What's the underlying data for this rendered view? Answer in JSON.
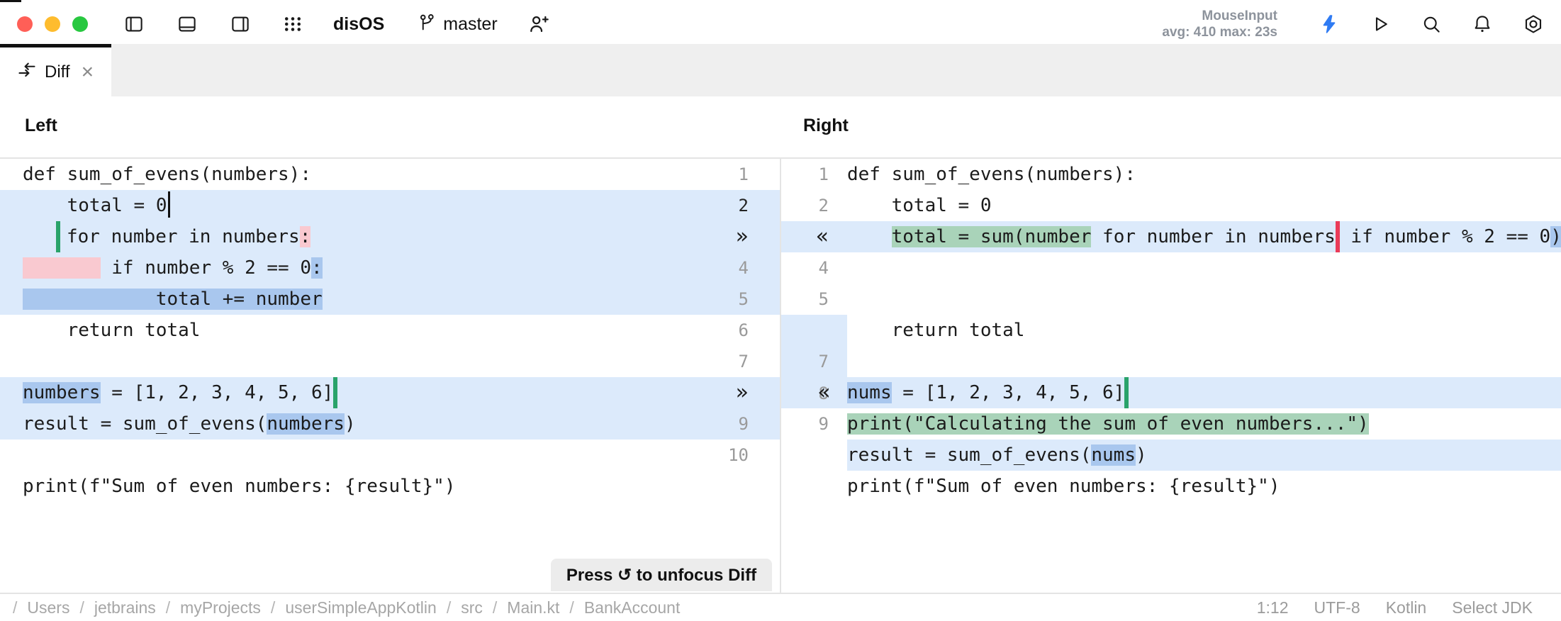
{
  "toolbar": {
    "project": "disOS",
    "branch": "master",
    "perf_line1": "MouseInput",
    "perf_line2": "avg: 410 max: 23s"
  },
  "tab": {
    "label": "Diff",
    "close": "×"
  },
  "diff": {
    "left_header": "Left",
    "right_header": "Right",
    "left_rows": [
      {
        "gutter": {
          "label": "1",
          "kind": "num"
        },
        "gutter_bg": "white",
        "code_bg": "white",
        "segs": [
          {
            "t": "def sum_of_evens(numbers):"
          }
        ]
      },
      {
        "gutter": {
          "label": "2",
          "kind": "num-active"
        },
        "gutter_bg": "blue",
        "code_bg": "blue",
        "segs": [
          {
            "t": "    total = 0"
          },
          {
            "caret": true
          }
        ]
      },
      {
        "gutter": {
          "label": "»",
          "kind": "chev"
        },
        "gutter_bg": "blue",
        "code_bg": "blue",
        "segs": [
          {
            "t": "   "
          },
          {
            "bar": "green"
          },
          {
            "t": "for number in numbers"
          },
          {
            "t": ":",
            "h": "del"
          }
        ]
      },
      {
        "gutter": {
          "label": "4",
          "kind": "num"
        },
        "gutter_bg": "blue",
        "code_bg": "blue",
        "segs": [
          {
            "t": "       ",
            "h": "del"
          },
          {
            "t": " "
          },
          {
            "t": "if number % 2 == 0"
          },
          {
            "t": ":",
            "h": "word"
          }
        ]
      },
      {
        "gutter": {
          "label": "5",
          "kind": "num"
        },
        "gutter_bg": "blue",
        "code_bg": "blue",
        "segs": [
          {
            "t": "            total += number",
            "h": "word"
          }
        ]
      },
      {
        "gutter": {
          "label": "6",
          "kind": "num"
        },
        "gutter_bg": "white",
        "code_bg": "white",
        "segs": [
          {
            "t": "    return total"
          }
        ]
      },
      {
        "gutter": {
          "label": "7",
          "kind": "num"
        },
        "gutter_bg": "white",
        "code_bg": "white",
        "segs": []
      },
      {
        "gutter": {
          "label": "»",
          "kind": "chev"
        },
        "gutter_bg": "blue",
        "code_bg": "blue",
        "segs": [
          {
            "t": "numbers",
            "h": "word"
          },
          {
            "t": " = [1, 2, 3, 4, 5, 6]"
          },
          {
            "bar": "green"
          }
        ]
      },
      {
        "gutter": {
          "label": "9",
          "kind": "num"
        },
        "gutter_bg": "blue",
        "code_bg": "blue",
        "segs": [
          {
            "t": "result = sum_of_evens("
          },
          {
            "t": "numbers",
            "h": "word"
          },
          {
            "t": ")"
          }
        ]
      },
      {
        "gutter": {
          "label": "10",
          "kind": "num"
        },
        "gutter_bg": "white",
        "code_bg": "white",
        "segs": []
      },
      {
        "gutter": {
          "label": "",
          "kind": "empty"
        },
        "gutter_bg": "white",
        "code_bg": "white",
        "segs": [
          {
            "t": "print(f\"Sum of even numbers: {result}\")"
          }
        ]
      }
    ],
    "right_rows": [
      {
        "gutter": {
          "label": "1",
          "kind": "num"
        },
        "gutter_bg": "white",
        "code_bg": "white",
        "segs": [
          {
            "t": "def sum_of_evens(numbers):"
          }
        ]
      },
      {
        "gutter": {
          "label": "2",
          "kind": "num"
        },
        "gutter_bg": "white",
        "code_bg": "white",
        "segs": [
          {
            "t": "    total = 0"
          }
        ]
      },
      {
        "gutter": {
          "label": "«",
          "kind": "chev"
        },
        "gutter_bg": "blue",
        "code_bg": "blue",
        "segs": [
          {
            "t": "    "
          },
          {
            "t": "total = sum(number",
            "h": "add"
          },
          {
            "t": " for number in numbers"
          },
          {
            "bar": "red"
          },
          {
            "t": " if number % 2 == 0"
          },
          {
            "t": ")",
            "h": "word"
          }
        ]
      },
      {
        "gutter": {
          "label": "4",
          "kind": "num"
        },
        "gutter_bg": "white",
        "code_bg": "white",
        "segs": []
      },
      {
        "gutter": {
          "label": "5",
          "kind": "num"
        },
        "gutter_bg": "white",
        "code_bg": "white",
        "segs": []
      },
      {
        "gutter": {
          "label": "",
          "kind": "empty"
        },
        "gutter_bg": "blue",
        "code_bg": "white",
        "segs": [
          {
            "t": "    return total"
          }
        ]
      },
      {
        "gutter": {
          "label": "7",
          "kind": "num"
        },
        "gutter_bg": "blue",
        "code_bg": "white",
        "segs": []
      },
      {
        "gutter": {
          "label": "«",
          "kind": "chev",
          "extra": "8"
        },
        "gutter_bg": "blue",
        "code_bg": "blue",
        "segs": [
          {
            "t": "nums",
            "h": "word"
          },
          {
            "t": " = [1, 2, 3, 4, 5, 6]"
          },
          {
            "bar": "green"
          }
        ]
      },
      {
        "gutter": {
          "label": "9",
          "kind": "num"
        },
        "gutter_bg": "white",
        "code_bg": "white",
        "segs": [
          {
            "t": "print(\"Calculating the sum of even numbers...\")",
            "h": "add"
          }
        ]
      },
      {
        "gutter": {
          "label": "",
          "kind": "empty"
        },
        "gutter_bg": "white",
        "code_bg": "blue",
        "segs": [
          {
            "t": "result = sum_of_evens("
          },
          {
            "t": "nums",
            "h": "word"
          },
          {
            "t": ")"
          }
        ]
      },
      {
        "gutter": {
          "label": "",
          "kind": "empty"
        },
        "gutter_bg": "white",
        "code_bg": "white",
        "segs": [
          {
            "t": "print(f\"Sum of even numbers: {result}\")"
          }
        ]
      }
    ]
  },
  "focus_hint": "Press ↺ to unfocus Diff",
  "statusbar": {
    "path_root": "/",
    "breadcrumbs": [
      "Users",
      "jetbrains",
      "myProjects",
      "userSimpleAppKotlin",
      "src",
      "Main.kt",
      "BankAccount"
    ],
    "caret_position": "1:12",
    "encoding": "UTF-8",
    "language": "Kotlin",
    "jdk": "Select JDK"
  }
}
